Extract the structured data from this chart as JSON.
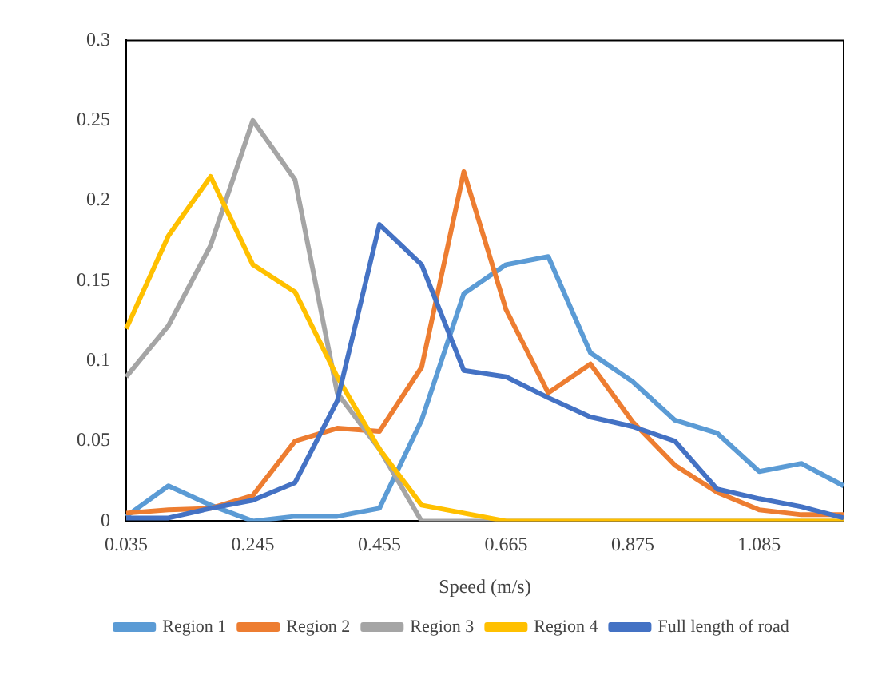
{
  "chart_data": {
    "type": "line",
    "xlabel": "Speed (m/s)",
    "categories": [
      "0.035",
      null,
      null,
      "0.245",
      null,
      null,
      "0.455",
      null,
      null,
      "0.665",
      null,
      null,
      "0.875",
      null,
      null,
      "1.085",
      null,
      null
    ],
    "ylim": [
      0,
      0.3
    ],
    "yticks": [
      0,
      0.05,
      0.1,
      0.15,
      0.2,
      0.25,
      0.3
    ],
    "grid": false,
    "legend": "bottom",
    "marker": "none",
    "line_style": "solid",
    "series": [
      {
        "name": "Region 1",
        "color": "#5b9bd5",
        "values": [
          0.003,
          0.022,
          0.01,
          0,
          0.003,
          0.003,
          0.008,
          0.063,
          0.142,
          0.16,
          0.165,
          0.105,
          0.087,
          0.063,
          0.055,
          0.031,
          0.036,
          0.022
        ]
      },
      {
        "name": "Region 2",
        "color": "#ed7d31",
        "values": [
          0.005,
          0.007,
          0.008,
          0.016,
          0.05,
          0.058,
          0.056,
          0.096,
          0.218,
          0.132,
          0.08,
          0.098,
          0.062,
          0.035,
          0.018,
          0.007,
          0.004,
          0.004
        ]
      },
      {
        "name": "Region 3",
        "color": "#a5a5a5",
        "values": [
          0.09,
          0.122,
          0.172,
          0.25,
          0.213,
          0.08,
          0.045,
          0,
          0,
          0,
          0,
          0,
          0,
          0,
          0,
          0,
          0,
          0
        ]
      },
      {
        "name": "Region 4",
        "color": "#ffc000",
        "values": [
          0.12,
          0.178,
          0.215,
          0.16,
          0.143,
          0.09,
          0.045,
          0.01,
          0.005,
          0,
          0,
          0,
          0,
          0,
          0,
          0,
          0,
          0
        ]
      },
      {
        "name": "Full length of road",
        "color": "#4472c4",
        "values": [
          0.002,
          0.002,
          0.008,
          0.013,
          0.024,
          0.075,
          0.185,
          0.16,
          0.094,
          0.09,
          0.077,
          0.065,
          0.059,
          0.05,
          0.02,
          0.014,
          0.009,
          0.002
        ]
      }
    ]
  }
}
